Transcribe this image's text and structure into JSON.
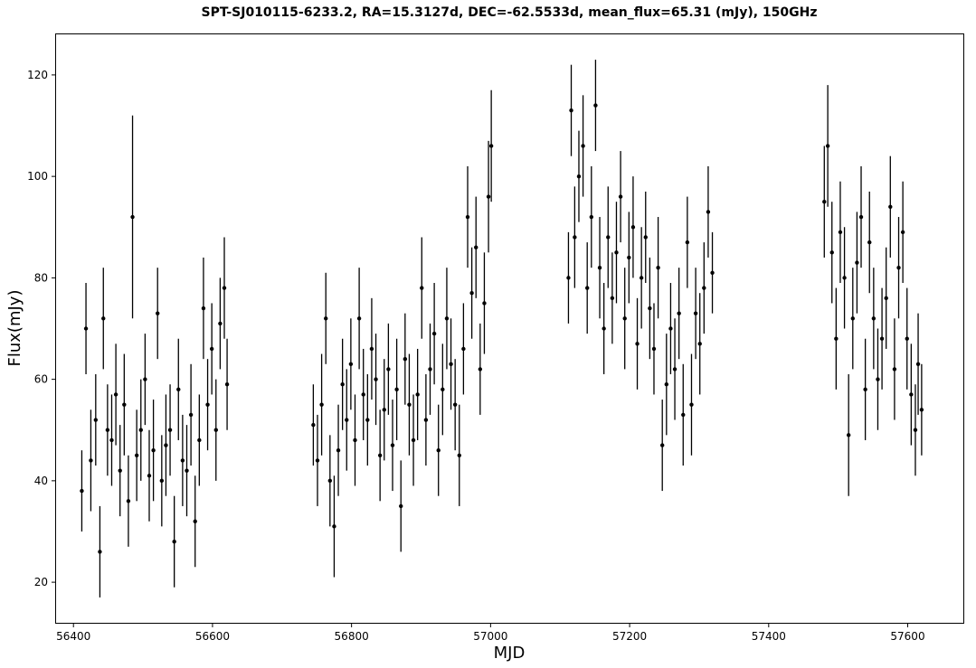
{
  "chart_data": {
    "type": "scatter",
    "title": "SPT-SJ010115-6233.2, RA=15.3127d, DEC=-62.5533d, mean_flux=65.31 (mJy), 150GHz",
    "xlabel": "MJD",
    "ylabel": "Flux(mJy)",
    "xlim": [
      56375,
      57680
    ],
    "ylim": [
      12,
      128
    ],
    "xticks": [
      56400,
      56600,
      56800,
      57000,
      57200,
      57400,
      57600
    ],
    "yticks": [
      20,
      40,
      60,
      80,
      100,
      120
    ],
    "grid": false,
    "legend": "none",
    "marker_color": "#000000",
    "error_bar_color": "#000000",
    "series": [
      {
        "x": [
          56412,
          56418,
          56425,
          56432,
          56438,
          56443,
          56449,
          56455,
          56461,
          56467,
          56473,
          56479,
          56485,
          56491,
          56497,
          56503,
          56509,
          56515,
          56521,
          56527,
          56533,
          56539,
          56545,
          56551,
          56557,
          56563,
          56569,
          56575,
          56581,
          56587,
          56593,
          56599,
          56605,
          56611,
          56617,
          56621
        ],
        "y": [
          38,
          70,
          44,
          52,
          26,
          72,
          50,
          48,
          57,
          42,
          55,
          36,
          92,
          45,
          50,
          60,
          41,
          46,
          73,
          40,
          47,
          50,
          28,
          58,
          44,
          42,
          53,
          32,
          48,
          74,
          55,
          66,
          50,
          71,
          78,
          59
        ],
        "err": [
          8,
          9,
          10,
          9,
          9,
          10,
          9,
          9,
          10,
          9,
          10,
          9,
          20,
          9,
          10,
          9,
          9,
          10,
          9,
          9,
          10,
          9,
          9,
          10,
          9,
          9,
          10,
          9,
          9,
          10,
          9,
          9,
          10,
          9,
          10,
          9
        ]
      },
      {
        "x": [
          56745,
          56751,
          56757,
          56763,
          56769,
          56775,
          56781,
          56787,
          56793,
          56799,
          56805,
          56811,
          56817,
          56823,
          56829,
          56835,
          56841,
          56847,
          56853,
          56859,
          56865,
          56871,
          56877,
          56883,
          56889,
          56895,
          56901,
          56907,
          56913,
          56919,
          56925,
          56931,
          56937,
          56943,
          56949,
          56955,
          56961,
          56967,
          56973,
          56979,
          56985,
          56991,
          56997,
          57001
        ],
        "y": [
          51,
          44,
          55,
          72,
          40,
          31,
          46,
          59,
          52,
          63,
          48,
          72,
          57,
          52,
          66,
          60,
          45,
          54,
          62,
          47,
          58,
          35,
          64,
          55,
          48,
          57,
          78,
          52,
          62,
          69,
          46,
          58,
          72,
          63,
          55,
          45,
          66,
          92,
          77,
          86,
          62,
          75,
          96,
          106
        ],
        "err": [
          8,
          9,
          10,
          9,
          9,
          10,
          9,
          9,
          10,
          9,
          9,
          10,
          9,
          9,
          10,
          9,
          9,
          10,
          9,
          9,
          10,
          9,
          9,
          10,
          9,
          9,
          10,
          9,
          9,
          10,
          9,
          9,
          10,
          9,
          9,
          10,
          9,
          10,
          9,
          10,
          9,
          10,
          11,
          11
        ]
      },
      {
        "x": [
          57112,
          57116,
          57121,
          57127,
          57133,
          57139,
          57145,
          57151,
          57157,
          57163,
          57169,
          57175,
          57181,
          57187,
          57193,
          57199,
          57205,
          57211,
          57217,
          57223,
          57229,
          57235,
          57241,
          57247,
          57253,
          57259,
          57265,
          57271,
          57277,
          57283,
          57289,
          57295,
          57301,
          57307,
          57313,
          57319
        ],
        "y": [
          80,
          113,
          88,
          100,
          106,
          78,
          92,
          114,
          82,
          70,
          88,
          76,
          85,
          96,
          72,
          84,
          90,
          67,
          80,
          88,
          74,
          66,
          82,
          47,
          59,
          70,
          62,
          73,
          53,
          87,
          55,
          73,
          67,
          78,
          93,
          81
        ],
        "err": [
          9,
          9,
          10,
          9,
          10,
          9,
          10,
          9,
          10,
          9,
          10,
          9,
          10,
          9,
          10,
          9,
          10,
          9,
          10,
          9,
          10,
          9,
          10,
          9,
          10,
          9,
          10,
          9,
          10,
          9,
          10,
          9,
          10,
          9,
          9,
          8
        ]
      },
      {
        "x": [
          57480,
          57485,
          57491,
          57497,
          57503,
          57509,
          57515,
          57521,
          57527,
          57533,
          57539,
          57545,
          57551,
          57557,
          57563,
          57569,
          57575,
          57581,
          57587,
          57593,
          57599,
          57605,
          57611,
          57615,
          57620
        ],
        "y": [
          95,
          106,
          85,
          68,
          89,
          80,
          49,
          72,
          83,
          92,
          58,
          87,
          72,
          60,
          68,
          76,
          94,
          62,
          82,
          89,
          68,
          57,
          50,
          63,
          54
        ],
        "err": [
          11,
          12,
          10,
          10,
          10,
          10,
          12,
          10,
          10,
          10,
          10,
          10,
          10,
          10,
          10,
          10,
          10,
          10,
          10,
          10,
          10,
          10,
          9,
          10,
          9
        ]
      }
    ]
  }
}
